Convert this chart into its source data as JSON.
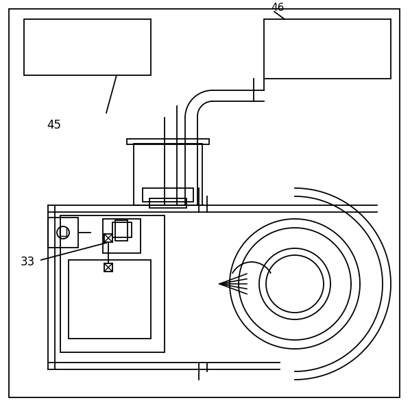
{
  "bg_color": "#ffffff",
  "lc": "#000000",
  "lw": 1.3,
  "fig_w": 5.98,
  "fig_h": 5.95,
  "dpi": 100,
  "label_45": "45",
  "label_46": "46",
  "label_33": "33"
}
